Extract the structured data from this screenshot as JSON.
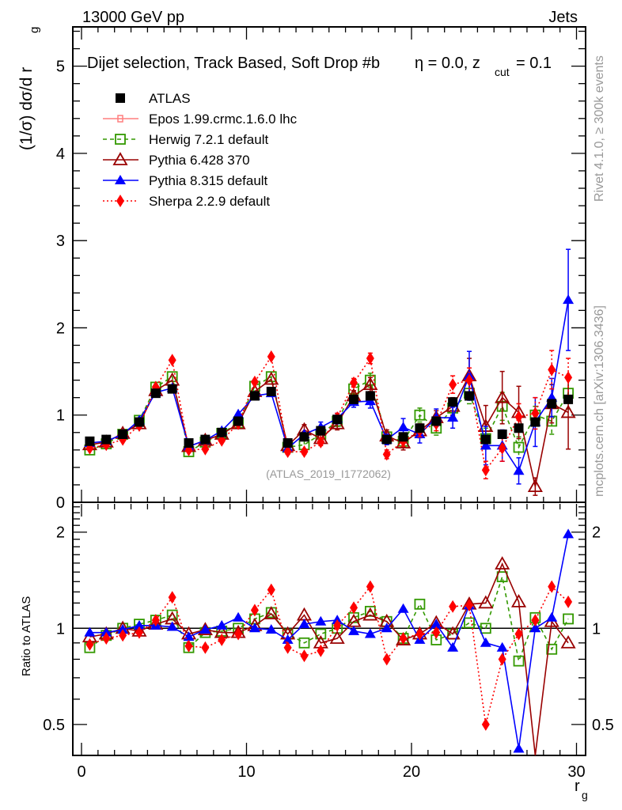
{
  "header": {
    "left": "13000 GeV pp",
    "right": "Jets"
  },
  "side_labels": {
    "rivet": "Rivet 4.1.0, ≥ 300k events",
    "mcplots": "mcplots.cern.ch [arXiv:1306.3436]"
  },
  "chart_data": [
    {
      "type": "line",
      "panel": "main",
      "title": "Dijet selection, Track Based, Soft Drop #bη = 0.0, z_cut = 0.1",
      "title_main": "Dijet selection, Track Based, Soft Drop #b",
      "title_eta": "η = 0.0, z",
      "title_sub": "cut",
      "title_end": " = 0.1",
      "ylabel": "(1/σ) dσ/d r",
      "ylabel_sub": "g",
      "xlabel": "",
      "ylim": [
        0,
        5.45
      ],
      "xlim": [
        -0.5,
        30.5
      ],
      "yticks": [
        0,
        1,
        2,
        3,
        4,
        5
      ],
      "ytick_labels": [
        "0",
        "1",
        "2",
        "3",
        "4",
        "5"
      ],
      "watermark": "(ATLAS_2019_I1772062)",
      "legend_position": "top-left",
      "x": [
        0.5,
        1.5,
        2.5,
        3.5,
        4.5,
        5.5,
        6.5,
        7.5,
        8.5,
        9.5,
        10.5,
        11.5,
        12.5,
        13.5,
        14.5,
        15.5,
        16.5,
        17.5,
        18.5,
        19.5,
        20.5,
        21.5,
        22.5,
        23.5,
        24.5,
        25.5,
        26.5,
        27.5,
        28.5,
        29.5
      ],
      "series": [
        {
          "name": "ATLAS",
          "color": "#000000",
          "marker": "square-filled",
          "line": "none",
          "values": [
            0.7,
            0.72,
            0.78,
            0.92,
            1.25,
            1.3,
            0.68,
            0.72,
            0.8,
            0.93,
            1.22,
            1.27,
            0.68,
            0.75,
            0.82,
            0.95,
            1.18,
            1.22,
            0.72,
            0.75,
            0.85,
            0.93,
            1.15,
            1.22,
            0.72,
            0.78,
            0.85,
            0.92,
            1.13,
            1.18
          ]
        },
        {
          "name": "Epos 1.99.crmc.1.6.0 lhc",
          "color": "#ff7f7f",
          "marker": "cross-open",
          "line": "solid",
          "values": []
        },
        {
          "name": "Herwig 7.2.1 default",
          "color": "#339900",
          "marker": "square-open",
          "line": "dashed",
          "values": [
            0.6,
            0.67,
            0.78,
            0.94,
            1.32,
            1.44,
            0.58,
            0.69,
            0.79,
            0.91,
            1.33,
            1.44,
            0.63,
            0.66,
            0.78,
            0.93,
            1.3,
            1.4,
            0.75,
            0.7,
            1.0,
            0.85,
            1.08,
            1.25,
            0.73,
            1.1,
            0.63,
            1.0,
            0.93,
            1.25
          ]
        },
        {
          "name": "Pythia 6.428 370",
          "color": "#990000",
          "marker": "triangle-open",
          "line": "solid",
          "values": [
            0.66,
            0.69,
            0.79,
            0.9,
            1.28,
            1.4,
            0.64,
            0.71,
            0.78,
            0.9,
            1.27,
            1.41,
            0.65,
            0.83,
            0.73,
            0.9,
            1.22,
            1.35,
            0.76,
            0.68,
            0.82,
            0.97,
            1.1,
            1.45,
            0.87,
            1.2,
            1.03,
            0.18,
            1.13,
            1.03
          ]
        },
        {
          "name": "Pythia 8.315 default",
          "color": "#0000ff",
          "marker": "triangle-filled",
          "line": "solid",
          "values": [
            0.68,
            0.7,
            0.78,
            0.94,
            1.26,
            1.31,
            0.64,
            0.71,
            0.82,
            1.01,
            1.22,
            1.25,
            0.62,
            0.78,
            0.86,
            0.96,
            1.15,
            1.16,
            0.72,
            0.86,
            0.78,
            0.97,
            0.97,
            1.45,
            0.65,
            0.65,
            0.36,
            0.92,
            1.2,
            2.32
          ]
        },
        {
          "name": "Sherpa 2.2.9 default",
          "color": "#ff0000",
          "marker": "diamond-filled",
          "line": "dotted",
          "values": [
            0.62,
            0.66,
            0.72,
            0.88,
            1.32,
            1.63,
            0.6,
            0.61,
            0.71,
            0.9,
            1.38,
            1.67,
            0.58,
            0.58,
            0.69,
            0.97,
            1.37,
            1.65,
            0.55,
            0.7,
            0.82,
            0.9,
            1.35,
            1.4,
            0.37,
            0.62,
            0.98,
            1.02,
            1.52,
            1.43
          ]
        }
      ],
      "errors": {
        "Pythia 8.315 default": [
          0,
          0,
          0,
          0,
          0,
          0,
          0,
          0,
          0,
          0,
          0,
          0,
          0,
          0,
          0.06,
          0.06,
          0.06,
          0.08,
          0.06,
          0.1,
          0.1,
          0.1,
          0.12,
          0.28,
          0.22,
          0.18,
          0.15,
          0.28,
          0.22,
          0.58
        ],
        "Pythia 6.428 370": [
          0,
          0,
          0,
          0,
          0,
          0,
          0,
          0,
          0,
          0,
          0,
          0,
          0.05,
          0.06,
          0.06,
          0.07,
          0.06,
          0.08,
          0.07,
          0.08,
          0.08,
          0.08,
          0.1,
          0.2,
          0.24,
          0.3,
          0.3,
          0.1,
          0.22,
          0.42
        ],
        "Herwig 7.2.1 default": [
          0,
          0,
          0,
          0,
          0,
          0,
          0,
          0,
          0,
          0,
          0,
          0,
          0.05,
          0.05,
          0.05,
          0.06,
          0.06,
          0.08,
          0.06,
          0.07,
          0.08,
          0.08,
          0.08,
          0.12,
          0.12,
          0.16,
          0.12,
          0.1,
          0.15,
          0.18
        ],
        "Sherpa 2.2.9 default": [
          0,
          0,
          0,
          0,
          0,
          0,
          0,
          0,
          0,
          0,
          0,
          0,
          0.03,
          0.03,
          0.04,
          0.05,
          0.05,
          0.06,
          0.05,
          0.06,
          0.07,
          0.08,
          0.1,
          0.14,
          0.1,
          0.15,
          0.15,
          0.18,
          0.22,
          0.22
        ]
      }
    },
    {
      "type": "line",
      "panel": "ratio",
      "ylabel": "Ratio to ATLAS",
      "xlabel": "r",
      "xlabel_sub": "g",
      "yscale": "log",
      "ylim": [
        0.4,
        2.48
      ],
      "xlim": [
        -0.5,
        30.5
      ],
      "yticks": [
        0.5,
        1,
        2
      ],
      "ytick_labels": [
        "0.5",
        "1",
        "2"
      ],
      "xticks": [
        0,
        10,
        20,
        30
      ],
      "xtick_labels": [
        "0",
        "10",
        "20",
        "30"
      ],
      "reference_line": 1,
      "x": [
        0.5,
        1.5,
        2.5,
        3.5,
        4.5,
        5.5,
        6.5,
        7.5,
        8.5,
        9.5,
        10.5,
        11.5,
        12.5,
        13.5,
        14.5,
        15.5,
        16.5,
        17.5,
        18.5,
        19.5,
        20.5,
        21.5,
        22.5,
        23.5,
        24.5,
        25.5,
        26.5,
        27.5,
        28.5,
        29.5
      ],
      "series": [
        {
          "name": "Herwig 7.2.1 default",
          "color": "#339900",
          "marker": "square-open",
          "line": "dashed",
          "values": [
            0.87,
            0.95,
            1.0,
            1.03,
            1.06,
            1.1,
            0.87,
            0.97,
            0.98,
            1.0,
            1.07,
            1.12,
            0.96,
            0.9,
            0.96,
            1.0,
            1.08,
            1.13,
            1.05,
            0.93,
            1.19,
            0.92,
            0.96,
            1.04,
            1.0,
            1.45,
            0.79,
            1.08,
            0.86,
            1.07
          ]
        },
        {
          "name": "Pythia 6.428 370",
          "color": "#990000",
          "marker": "triangle-open",
          "line": "solid",
          "values": [
            0.94,
            0.96,
            1.0,
            0.98,
            1.03,
            1.07,
            0.96,
            0.99,
            0.97,
            0.97,
            1.02,
            1.11,
            0.96,
            1.1,
            0.9,
            0.93,
            1.05,
            1.1,
            1.05,
            0.92,
            0.96,
            1.04,
            0.96,
            1.19,
            1.2,
            1.59,
            1.21,
            0.2,
            1.05,
            0.9
          ]
        },
        {
          "name": "Pythia 8.315 default",
          "color": "#0000ff",
          "marker": "triangle-filled",
          "line": "solid",
          "values": [
            0.97,
            0.97,
            0.99,
            1.02,
            1.02,
            1.01,
            0.94,
            0.99,
            1.02,
            1.08,
            1.0,
            0.99,
            0.92,
            1.03,
            1.05,
            1.06,
            0.98,
            0.96,
            1.0,
            1.15,
            0.92,
            1.03,
            0.87,
            1.18,
            0.9,
            0.87,
            0.42,
            1.0,
            1.08,
            1.97
          ]
        },
        {
          "name": "Sherpa 2.2.9 default",
          "color": "#ff0000",
          "marker": "diamond-filled",
          "line": "dotted",
          "values": [
            0.89,
            0.93,
            0.95,
            0.97,
            1.06,
            1.25,
            0.88,
            0.87,
            0.92,
            0.96,
            1.14,
            1.32,
            0.87,
            0.82,
            0.85,
            1.02,
            1.16,
            1.35,
            0.8,
            0.93,
            0.96,
            0.97,
            1.17,
            1.18,
            0.5,
            0.8,
            0.96,
            1.06,
            1.35,
            1.21
          ]
        }
      ]
    }
  ]
}
